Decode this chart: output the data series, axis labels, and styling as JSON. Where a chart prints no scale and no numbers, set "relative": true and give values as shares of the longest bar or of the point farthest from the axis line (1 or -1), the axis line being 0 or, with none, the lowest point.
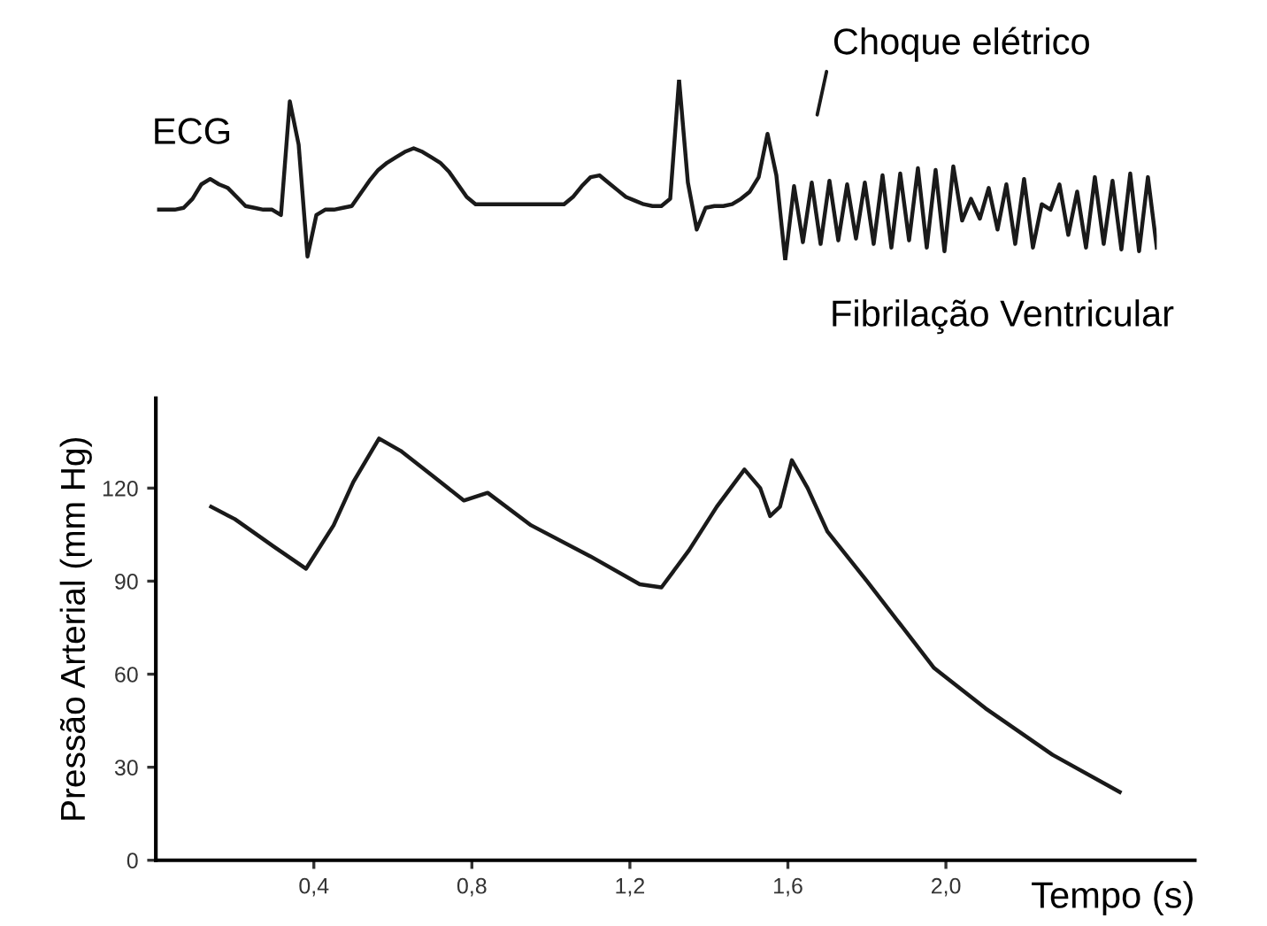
{
  "chart_data": [
    {
      "type": "line",
      "relative": true,
      "grid": false,
      "legend": false,
      "annotations": [
        "ECG",
        "Choque elétrico",
        "Fibrilação Ventricular"
      ],
      "categories": [
        null,
        null,
        null,
        null,
        null,
        null,
        null,
        null,
        null,
        null,
        null,
        null,
        null,
        null,
        null,
        null,
        null,
        null,
        null,
        null,
        null,
        null,
        null,
        null,
        null,
        null,
        null,
        null,
        null,
        null,
        null,
        null,
        null,
        null,
        null,
        null,
        null,
        null,
        null,
        null,
        null,
        null,
        null,
        null,
        null,
        null,
        null,
        null,
        null,
        null,
        null,
        null,
        null,
        null,
        null,
        null,
        null,
        null,
        null,
        null,
        null,
        null,
        null,
        null,
        null,
        null,
        null,
        null,
        null,
        null,
        null,
        null,
        null,
        null,
        null,
        null,
        null,
        null,
        null,
        null,
        null,
        null,
        null,
        null,
        null,
        null,
        null,
        null,
        null,
        null,
        null,
        null,
        null,
        null,
        null,
        null,
        null,
        null,
        null,
        null,
        null,
        null,
        null,
        null,
        null,
        null,
        null,
        null,
        null,
        null,
        null,
        null,
        null,
        null
      ],
      "series": [
        {
          "color": "#1a1a1a",
          "values": [
            0.28,
            0.28,
            0.28,
            0.29,
            0.34,
            0.42,
            0.45,
            0.42,
            0.4,
            0.35,
            0.3,
            0.29,
            0.28,
            0.28,
            0.25,
            0.88,
            0.64,
            0.02,
            0.25,
            0.28,
            0.28,
            0.29,
            0.3,
            0.37,
            0.44,
            0.5,
            0.54,
            0.57,
            0.6,
            0.62,
            0.6,
            0.57,
            0.54,
            0.49,
            0.42,
            0.35,
            0.31,
            0.31,
            0.31,
            0.31,
            0.31,
            0.31,
            0.31,
            0.31,
            0.31,
            0.31,
            0.31,
            0.35,
            0.41,
            0.46,
            0.47,
            0.43,
            0.39,
            0.35,
            0.33,
            0.31,
            0.3,
            0.3,
            0.34,
            1,
            0.43,
            0.17,
            0.29,
            0.3,
            0.3,
            0.31,
            0.34,
            0.38,
            0.46,
            0.7,
            0.47,
            0,
            0.41,
            0.1,
            0.43,
            0.09,
            0.44,
            0.11,
            0.42,
            0.12,
            0.43,
            0.09,
            0.47,
            0.07,
            0.48,
            0.11,
            0.51,
            0.07,
            0.5,
            0.05,
            0.52,
            0.22,
            0.34,
            0.23,
            0.4,
            0.17,
            0.42,
            0.09,
            0.45,
            0.07,
            0.31,
            0.28,
            0.42,
            0.14,
            0.38,
            0.07,
            0.46,
            0.09,
            0.44,
            0.06,
            0.48,
            0.05,
            0.46,
            0.07
          ]
        }
      ]
    },
    {
      "type": "line",
      "xlabel": "Tempo (s)",
      "ylabel": "Pressão Arterial (mm Hg)",
      "xlim": [
        0,
        2.63
      ],
      "ylim": [
        0,
        149
      ],
      "grid": false,
      "legend": false,
      "xticks": [
        {
          "value": 0.4,
          "label": "0,4"
        },
        {
          "value": 0.8,
          "label": "0,8"
        },
        {
          "value": 1.2,
          "label": "1,2"
        },
        {
          "value": 1.6,
          "label": "1,6"
        },
        {
          "value": 2.0,
          "label": "2,0"
        }
      ],
      "yticks": [
        0,
        30,
        60,
        90,
        120
      ],
      "series": [
        {
          "color": "#1a1a1a",
          "x": [
            0.14,
            0.2,
            0.3,
            0.38,
            0.45,
            0.5,
            0.565,
            0.62,
            0.7,
            0.78,
            0.84,
            0.95,
            1.1,
            1.225,
            1.28,
            1.35,
            1.42,
            1.49,
            1.53,
            1.555,
            1.58,
            1.61,
            1.65,
            1.7,
            1.8,
            1.97,
            2.1,
            2.27,
            2.44
          ],
          "values": [
            114,
            110,
            101,
            94,
            108,
            122,
            136,
            132,
            124,
            116,
            118.5,
            108,
            98,
            89,
            88,
            100,
            114,
            126,
            120,
            111,
            114,
            129,
            120,
            106,
            90,
            62,
            49,
            34,
            22
          ]
        }
      ]
    }
  ]
}
